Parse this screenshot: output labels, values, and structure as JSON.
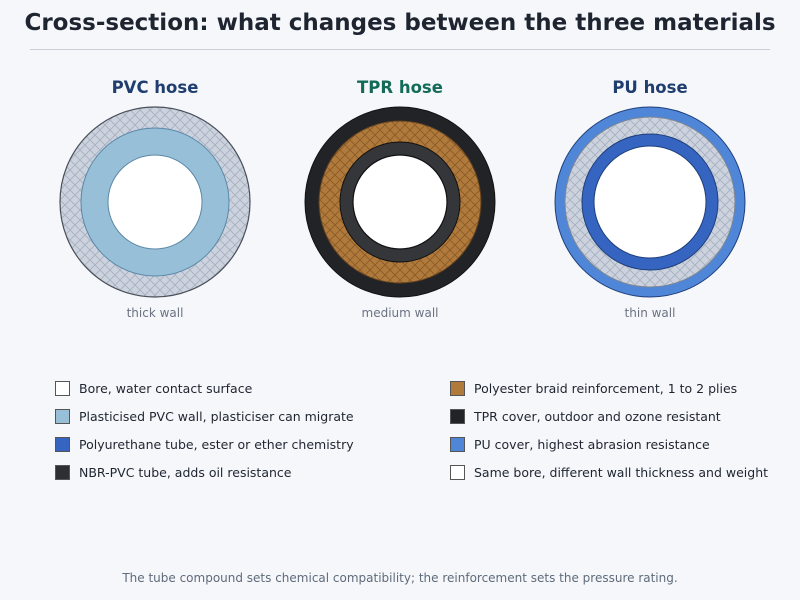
{
  "title": "Cross-section: what changes between the three materials",
  "hoses": [
    {
      "name": "PVC hose",
      "caption": "thick wall",
      "title_color": "#1f3d6e"
    },
    {
      "name": "TPR hose",
      "caption": "medium wall",
      "title_color": "#136b57"
    },
    {
      "name": "PU hose",
      "caption": "thin wall",
      "title_color": "#1f3d6e"
    }
  ],
  "legend": {
    "left": [
      {
        "label": "Bore, water contact surface",
        "color": "#ffffff"
      },
      {
        "label": "Plasticised PVC wall, plasticiser can migrate",
        "color": "#97bfd8"
      },
      {
        "label": "Polyurethane tube, ester or ether chemistry",
        "color": "#3565c0"
      },
      {
        "label": "NBR-PVC tube, adds oil resistance",
        "color": "#2e2f33"
      }
    ],
    "right": [
      {
        "label": "Polyester braid reinforcement, 1 to 2 plies",
        "color": "#b07a3c"
      },
      {
        "label": "TPR cover, outdoor and ozone resistant",
        "color": "#222326"
      },
      {
        "label": "PU cover, highest abrasion resistance",
        "color": "#4f86d8"
      },
      {
        "label": "Same bore, different wall thickness and weight",
        "color": "#ffffff"
      }
    ]
  },
  "footnote": "The tube compound sets chemical compatibility; the reinforcement sets the pressure rating."
}
